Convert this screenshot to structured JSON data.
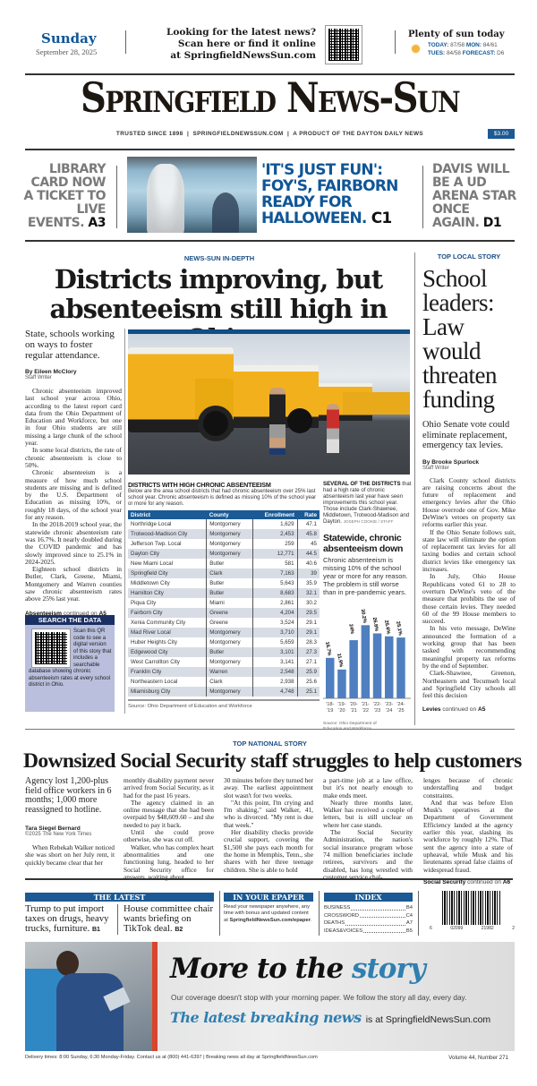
{
  "top_bar": {
    "day": "Sunday",
    "date": "September 28, 2025",
    "promo_lines": [
      "Looking for the latest news?",
      "Scan here or find it online",
      "at SpringfieldNewsSun.com"
    ],
    "weather": {
      "headline": "Plenty of sun today",
      "icon": "sun-icon",
      "today_label": "TODAY:",
      "today": "87/58",
      "mon_label": "MON:",
      "mon": "84/61",
      "tues_label": "TUES:",
      "tues": "84/58",
      "forecast_label": "FORECAST:",
      "forecast": "D6"
    }
  },
  "masthead": {
    "title": "Springfield News-Sun",
    "tagline": [
      "TRUSTED SINCE 1898",
      "SPRINGFIELDNEWSSUN.COM",
      "A PRODUCT OF THE DAYTON DAILY NEWS"
    ],
    "price": "$3.00"
  },
  "teasers": {
    "left": {
      "text": "LIBRARY CARD NOW A TICKET TO LIVE EVENTS.",
      "page": "A3"
    },
    "center": {
      "text": "'IT'S JUST FUN': FOY'S, FAIRBORN READY FOR HALLOWEEN.",
      "page": "C1"
    },
    "right": {
      "text": "DAVIS WILL BE A UD ARENA STAR ONCE AGAIN.",
      "page": "D1"
    }
  },
  "lead": {
    "kicker": "NEWS-SUN IN-DEPTH",
    "headline": [
      "Districts improving, but",
      "absenteeism still high in Ohio"
    ],
    "deck": "State, schools working on ways to foster regular attendance.",
    "byline": "By Eileen McClory",
    "byline_role": "Staff Writer",
    "paragraphs": [
      "Chronic absenteeism improved last school year across Ohio, according to the latest report card data from the Ohio Department of Education and Workforce, but one in four Ohio students are still missing a large chunk of the school year.",
      "In some local districts, the rate of chronic absenteeism is close to 50%.",
      "Chronic absenteeism is a measure of how much school students are missing and is defined by the U.S. Department of Education as missing 10%, or roughly 18 days, of the school year for any reason.",
      "In the 2018-2019 school year, the statewide chronic absenteeism rate was 16.7%. It nearly doubled during the COVID pandemic and has slowly improved since to 25.1% in 2024-2025.",
      "Eighteen school districts in Butler, Clark, Greene, Miami, Montgomery and Warren counties saw chronic absenteeism rates above 25% last year."
    ],
    "continued_keyword": "Absenteeism",
    "continued_text": "continued on",
    "continued_page": "A5",
    "search_box": {
      "title": "SEARCH THE DATA",
      "text": "Scan this QR code to see a digital version of this story that includes a searchable database showing chronic absenteeism rates at every school district in Ohio."
    },
    "photo_caption": {
      "lead": "SEVERAL OF THE DISTRICTS",
      "text": "that had a high rate of chronic absenteeism last year have seen improvements this school year. Those include Clark-Shawnee, Middletown, Trotwood-Madison and Dayton.",
      "credit": "JOSEPH COOKIE / STAFF"
    },
    "table": {
      "title": "DISTRICTS WITH HIGH CHRONIC ABSENTEEISM",
      "intro": "Below are the area school districts that had chronic absenteeism over 25% last school year. Chronic absenteeism is defined as missing 10% of the school year or more for any reason.",
      "columns": [
        "District",
        "County",
        "Enrollment",
        "Rate"
      ],
      "rows": [
        [
          "Northridge Local",
          "Montgomery",
          "1,629",
          "47.1"
        ],
        [
          "Trotwood-Madison City",
          "Montgomery",
          "2,453",
          "45.8"
        ],
        [
          "Jefferson Twp. Local",
          "Montgomery",
          "259",
          "45"
        ],
        [
          "Dayton City",
          "Montgomery",
          "12,771",
          "44.5"
        ],
        [
          "New Miami Local",
          "Butler",
          "581",
          "40.6"
        ],
        [
          "Springfield City",
          "Clark",
          "7,163",
          "39"
        ],
        [
          "Middletown City",
          "Butler",
          "5,643",
          "35.9"
        ],
        [
          "Hamilton City",
          "Butler",
          "8,683",
          "32.1"
        ],
        [
          "Piqua City",
          "Miami",
          "2,861",
          "30.2"
        ],
        [
          "Fairborn City",
          "Greene",
          "4,204",
          "29.5"
        ],
        [
          "Xenia Community City",
          "Greene",
          "3,524",
          "29.1"
        ],
        [
          "Mad River Local",
          "Montgomery",
          "3,710",
          "29.1"
        ],
        [
          "Huber Heights City",
          "Montgomery",
          "5,659",
          "28.3"
        ],
        [
          "Edgewood City",
          "Butler",
          "3,101",
          "27.3"
        ],
        [
          "West Carrollton City",
          "Montgomery",
          "3,141",
          "27.1"
        ],
        [
          "Franklin City",
          "Warren",
          "2,548",
          "25.9"
        ],
        [
          "Northeastern Local",
          "Clark",
          "2,938",
          "25.6"
        ],
        [
          "Miamisburg City",
          "Montgomery",
          "4,748",
          "25.1"
        ]
      ],
      "source": "Source: Ohio Department of Education and Workforce"
    },
    "chart_data": {
      "type": "bar",
      "title": "Statewide, chronic absenteeism down",
      "subtitle": "Chronic absenteeism is missing 10% of the school year or more for any reason. The problem is still worse than in pre-pandemic years.",
      "categories": [
        "'18-'19",
        "'19-'20",
        "'20-'21",
        "'21-'22",
        "'22-'23",
        "'23-'24",
        "'24-'25"
      ],
      "values": [
        16.7,
        11.9,
        24,
        30.2,
        26.8,
        25.6,
        25.1
      ],
      "data_labels": [
        "16.7%",
        "11.9%",
        "24%",
        "30.2%",
        "26.8%",
        "25.6%",
        "25.1%"
      ],
      "ylim": [
        0,
        34
      ],
      "grid": false,
      "color": "#4f7fc0",
      "source": "Source: Ohio Department of Education and Workforce"
    }
  },
  "local": {
    "kicker": "TOP LOCAL STORY",
    "headline": "School leaders: Law would threaten funding",
    "deck": "Ohio Senate vote could eliminate replacement, emergency tax levies.",
    "byline": "By Brooke Spurlock",
    "byline_role": "Staff Writer",
    "paragraphs": [
      "Clark County school districts are raising concerns about the future of replacement and emergency levies after the Ohio House overrode one of Gov. Mike DeWine's vetoes on property tax reforms earlier this year.",
      "If the Ohio Senate follows suit, state law will eliminate the option of replacement tax levies for all taxing bodies and certain school district levies like emergency tax increases.",
      "In July, Ohio House Republicans voted 61 to 28 to overturn DeWine's veto of the measure that prohibits the use of those certain levies. They needed 60 of the 99 House members to succeed.",
      "In his veto message, DeWine announced the formation of a working group that has been tasked with recommending meaningful property tax reforms by the end of September.",
      "Clark-Shawnee, Greenon, Northeastern and Tecumseh local and Springfield City schools all feel this decision"
    ],
    "continued_keyword": "Levies",
    "continued_text": "continued on",
    "continued_page": "A5"
  },
  "national": {
    "kicker": "TOP NATIONAL STORY",
    "headline": "Downsized Social Security staff struggles to help customers",
    "deck": "Agency lost 1,200-plus field office workers in 6 months; 1,000 more reassigned to hotline.",
    "byline": "Tara Siegel Bernard",
    "byline_role": "©2025 The New York Times",
    "col1": "When Rebekah Walker noticed she was short on her July rent, it quickly became clear that her",
    "col2": [
      "monthly disability payment never arrived from Social Security, as it had for the past 16 years.",
      "The agency claimed in an online message that she had been overpaid by $48,609.60 – and she needed to pay it back.",
      "Until she could prove otherwise, she was cut off.",
      "Walker, who has complex heart abnormalities and one functioning lung, headed to her Social Security office for answers, waiting about"
    ],
    "col3": [
      "30 minutes before they turned her away. The earliest appointment slot wasn't for two weeks.",
      "\"At this point, I'm crying and I'm shaking,\" said Walker, 41, who is divorced. \"My rent is due that week.\"",
      "Her disability checks provide crucial support, covering the $1,500 she pays each month for the home in Memphis, Tenn., she shares with her three teenage children. She is able to hold"
    ],
    "col4": [
      "a part-time job at a law office, but it's not nearly enough to make ends meet.",
      "Nearly three months later, Walker has received a couple of letters, but is still unclear on where her case stands.",
      "The Social Security Administration, the nation's social insurance program whose 74 million beneficiaries include retirees, survivors and the disabled, has long wrestled with customer service chal-"
    ],
    "col5": [
      "lenges because of chronic understaffing and budget constraints.",
      "And that was before Elon Musk's operatives at the Department of Government Efficiency landed at the agency earlier this year, slashing its workforce by roughly 12%. That sent the agency into a state of upheaval, while Musk and his lieutenants spread false claims of widespread fraud."
    ],
    "continued_keyword": "Social Security",
    "continued_text": "continued on",
    "continued_page": "A6"
  },
  "latest": {
    "title": "THE LATEST",
    "items": [
      {
        "text": "Trump to put import taxes on drugs, heavy trucks, furniture.",
        "page": "B1"
      },
      {
        "text": "House committee chair wants briefing on TikTok deal.",
        "page": "B2"
      }
    ]
  },
  "epaper": {
    "title": "IN YOUR EPAPER",
    "text": "Read your newspaper anywhere, any time with bonus and updated content at",
    "link": "SpringfieldNewsSun.com/epaper",
    "end": "."
  },
  "index": {
    "title": "INDEX",
    "items": [
      {
        "label": "BUSINESS",
        "page": "B4"
      },
      {
        "label": "CROSSWORD",
        "page": "C4"
      },
      {
        "label": "DEATHS",
        "page": "A7"
      },
      {
        "label": "IDEAS&VOICES",
        "page": "B5"
      }
    ]
  },
  "barcode": {
    "digits": [
      "6",
      "02099",
      "21982",
      "2"
    ]
  },
  "ad": {
    "headline_a": "More to the",
    "headline_b": "story",
    "line": "Our coverage doesn't stop with your morning paper. We follow the story all day, every day.",
    "tag_a": "The latest breaking news",
    "tag_b": "is at SpringfieldNewsSun.com"
  },
  "footer": {
    "left": "Delivery times: 8:00 Sunday, 6:30 Monday-Friday. Contact us at (800) 441-6397 | Breaking news all day at SpringfieldNewsSun.com",
    "right": "Volume 44, Number 271"
  },
  "colors": {
    "brand_blue": "#0f5697",
    "table_header": "#1b5a94",
    "search_box": "#b9bfdc",
    "ad_accent": "#d9452b"
  }
}
